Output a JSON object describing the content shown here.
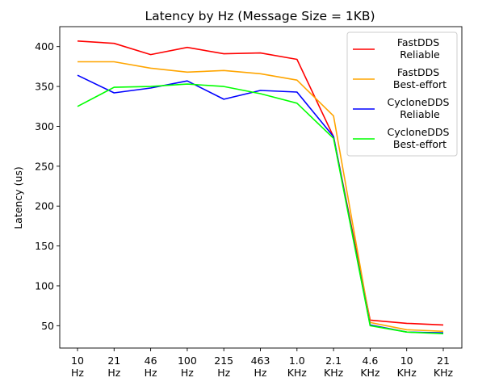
{
  "chart_data": {
    "type": "line",
    "title": "Latency by Hz (Message Size = 1KB)",
    "xlabel": "",
    "ylabel": "Latency (us)",
    "categories": [
      [
        "10",
        "Hz"
      ],
      [
        "21",
        "Hz"
      ],
      [
        "46",
        "Hz"
      ],
      [
        "100",
        "Hz"
      ],
      [
        "215",
        "Hz"
      ],
      [
        "463",
        "Hz"
      ],
      [
        "1.0",
        "KHz"
      ],
      [
        "2.1",
        "KHz"
      ],
      [
        "4.6",
        "KHz"
      ],
      [
        "10",
        "KHz"
      ],
      [
        "21",
        "KHz"
      ]
    ],
    "yticks": [
      50,
      100,
      150,
      200,
      250,
      300,
      350,
      400
    ],
    "ylim": [
      22,
      425
    ],
    "grid": false,
    "legend_position": "top-right",
    "series": [
      {
        "name": [
          "FastDDS",
          " Reliable"
        ],
        "color": "#ff0000",
        "values": [
          407,
          404,
          390,
          399,
          391,
          392,
          384,
          287,
          57,
          53,
          51
        ]
      },
      {
        "name": [
          "FastDDS",
          " Best-effort"
        ],
        "color": "#ffa500",
        "values": [
          381,
          381,
          373,
          368,
          370,
          366,
          358,
          313,
          54,
          45,
          43
        ]
      },
      {
        "name": [
          "CycloneDDS",
          " Reliable"
        ],
        "color": "#0000ff",
        "values": [
          364,
          342,
          348,
          357,
          334,
          345,
          343,
          287,
          51,
          42,
          41
        ]
      },
      {
        "name": [
          "CycloneDDS",
          " Best-effort"
        ],
        "color": "#00ff00",
        "values": [
          325,
          349,
          350,
          353,
          350,
          341,
          329,
          285,
          50,
          42,
          40
        ]
      }
    ]
  }
}
